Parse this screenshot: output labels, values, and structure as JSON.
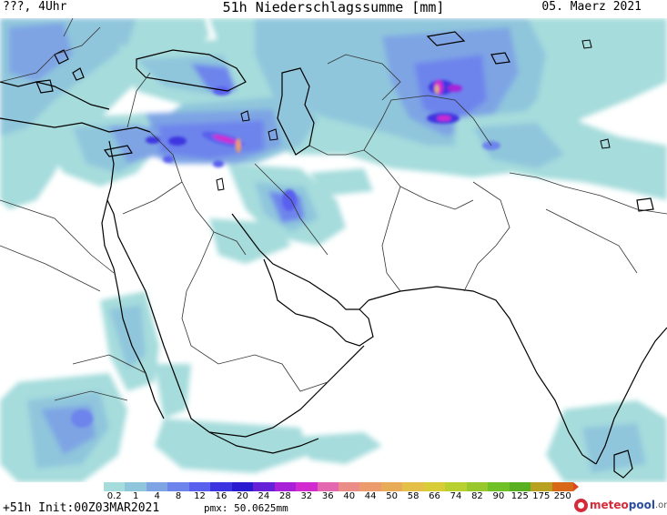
{
  "header": {
    "valid_time": "???, 4Uhr",
    "title": "51h Niederschlagssumme [mm]",
    "date": "05. Maerz 2021"
  },
  "legend": {
    "labels": [
      "0.2",
      "1",
      "4",
      "8",
      "12",
      "16",
      "20",
      "24",
      "28",
      "32",
      "36",
      "40",
      "44",
      "50",
      "58",
      "66",
      "74",
      "82",
      "90",
      "125",
      "175",
      "250"
    ],
    "colors": [
      "#a6dcdc",
      "#8fc6dc",
      "#7ea4e4",
      "#6d84ec",
      "#5a60ee",
      "#3c34e0",
      "#2a1ad0",
      "#6620d8",
      "#a820d8",
      "#d22cd0",
      "#e468b0",
      "#ec8c88",
      "#ec9c6c",
      "#e8ac58",
      "#e4c048",
      "#d8cc38",
      "#b8d030",
      "#98c82c",
      "#70c028",
      "#58b020",
      "#b8a020",
      "#d86818"
    ],
    "over_color": "#d84a1e"
  },
  "footer": {
    "forecast": "+51h Init:00Z03MAR2021",
    "pmx": "pmx: 50.0625mm"
  },
  "logo": {
    "name_a": "meteo",
    "name_b": "pool",
    "name_c": ".org"
  }
}
